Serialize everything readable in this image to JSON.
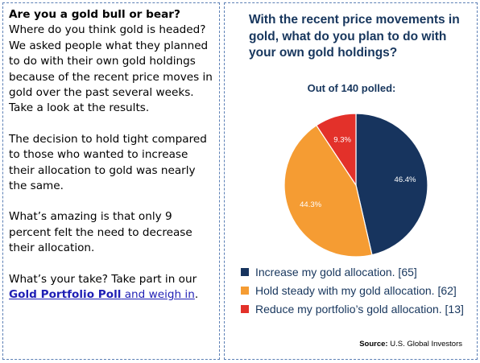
{
  "article": {
    "heading": "Are you a gold bull or bear?",
    "paragraph1": "Where do you think gold is headed? We asked people what they planned to do with their own gold holdings because of the recent price moves in gold over the past several weeks. Take a look at the results.",
    "paragraph2": "The decision to hold tight compared to those who wanted to increase their allocation to gold was nearly the same.",
    "paragraph3": "What’s amazing is that only 9 percent felt the need to decrease their allocation.",
    "cta_prefix": "What’s your take? Take part in our ",
    "cta_link_bold": "Gold Portfolio Poll",
    "cta_link_rest": " and weigh in",
    "cta_suffix": "."
  },
  "chart_data": {
    "type": "pie",
    "title": "With the recent price movements in gold, what do you plan to do with your own gold holdings?",
    "subtitle": "Out of 140 polled:",
    "slices": [
      {
        "label": "Increase my gold allocation. [65]",
        "value": 46.4,
        "display": "46.4%",
        "color": "#17345e"
      },
      {
        "label": "Hold steady with my gold allocation. [62]",
        "value": 44.3,
        "display": "44.3%",
        "color": "#f59c33"
      },
      {
        "label": "Reduce my portfolio’s gold allocation. [13]",
        "value": 9.3,
        "display": "9.3%",
        "color": "#e3312a"
      }
    ],
    "start": "12 o'clock",
    "direction": "clockwise",
    "legend_position": "bottom"
  },
  "source": {
    "label": "Source:",
    "text": " U.S. Global Investors"
  }
}
